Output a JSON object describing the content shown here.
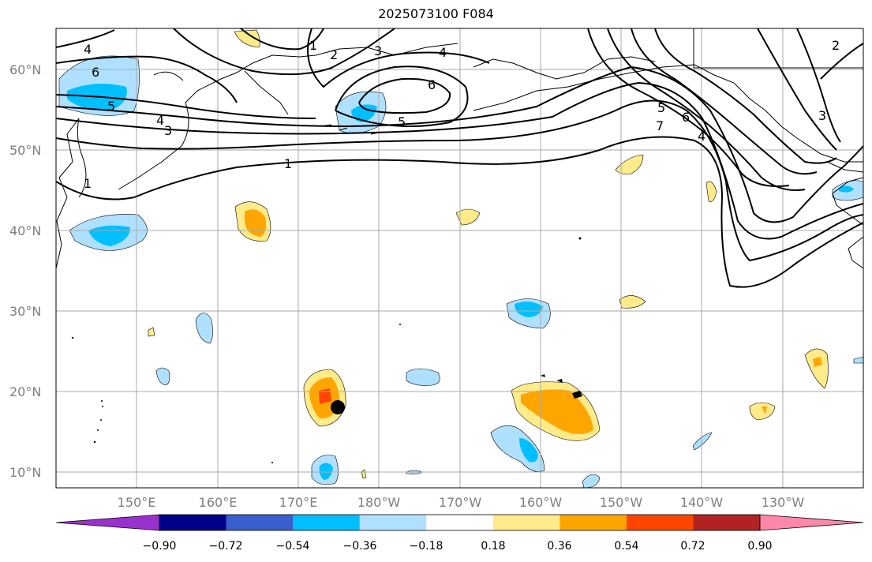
{
  "title": "2025073100 F084",
  "map": {
    "lat_labels": [
      "60°N",
      "50°N",
      "40°N",
      "30°N",
      "20°N",
      "10°N"
    ],
    "lon_labels": [
      "150°E",
      "160°E",
      "170°E",
      "180°W",
      "170°W",
      "160°W",
      "150°W",
      "140°W",
      "130°W"
    ],
    "contour_labels": [
      "4",
      "6",
      "5",
      "4",
      "3",
      "1",
      "1",
      "2",
      "3",
      "4",
      "6",
      "5",
      "1",
      "5",
      "6",
      "7",
      "4",
      "3",
      "2"
    ],
    "marker": "storm-center-dot"
  },
  "colorbar": {
    "tick_labels": [
      "−0.90",
      "−0.72",
      "−0.54",
      "−0.36",
      "−0.18",
      "0.18",
      "0.36",
      "0.54",
      "0.72",
      "0.90"
    ],
    "colors": [
      "#9932cc",
      "#00008b",
      "#3a5fcd",
      "#00bfff",
      "#b0e0ff",
      "#ffffff",
      "#ffeb8a",
      "#ffa500",
      "#ff4500",
      "#b22222",
      "#ff88aa"
    ]
  }
}
